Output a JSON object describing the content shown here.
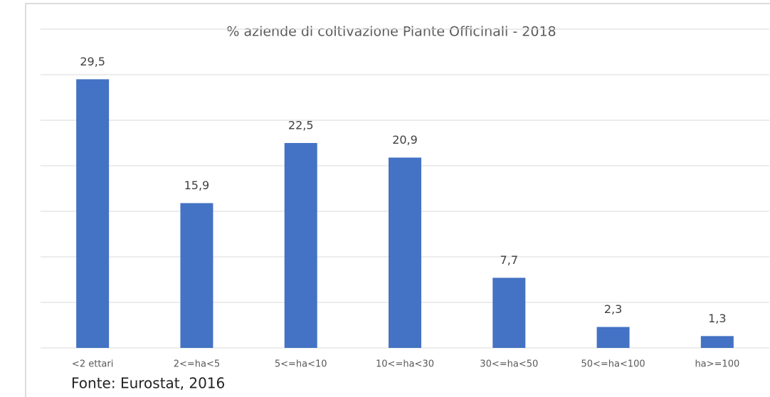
{
  "chart_data": {
    "type": "bar",
    "title": "% aziende di coltivazione Piante Officinali - 2018",
    "categories": [
      "<2 ettari",
      "2<=ha<5",
      "5<=ha<10",
      "10<=ha<30",
      "30<=ha<50",
      "50<=ha<100",
      "ha>=100"
    ],
    "values": [
      29.5,
      15.9,
      22.5,
      20.9,
      7.7,
      2.3,
      1.3
    ],
    "value_labels": [
      "29,5",
      "15,9",
      "22,5",
      "20,9",
      "7,7",
      "2,3",
      "1,3"
    ],
    "color": "#4472c4",
    "ylim": [
      0,
      35
    ],
    "yticks": [
      0,
      5,
      10,
      15,
      20,
      25,
      30,
      35
    ],
    "grid": true,
    "source": "Fonte: Eurostat, 2016"
  }
}
